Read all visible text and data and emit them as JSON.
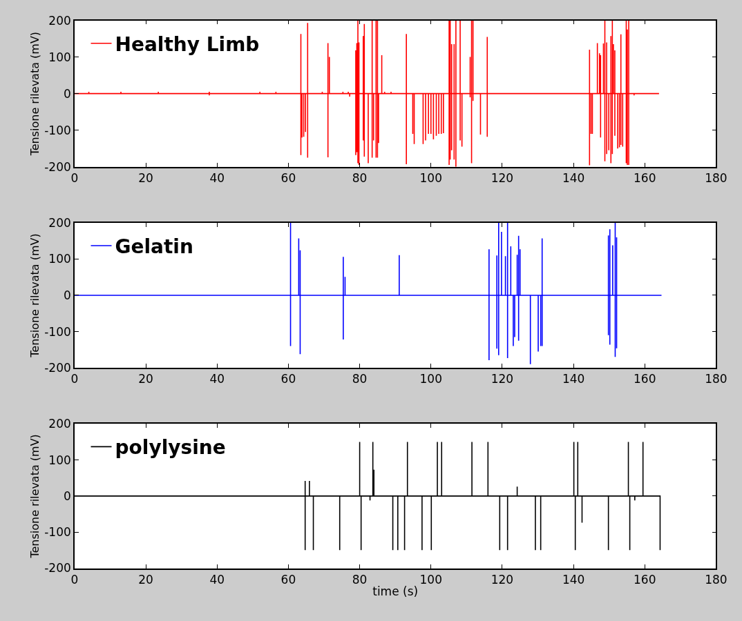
{
  "chart_data": [
    {
      "type": "line",
      "ylabel": "Tensione rilevata (mV)",
      "xlim": [
        0,
        180
      ],
      "xticks": [
        0,
        20,
        40,
        60,
        80,
        100,
        120,
        140,
        160,
        180
      ],
      "ylim": [
        -200,
        200
      ],
      "yticks": [
        -200,
        -100,
        0,
        100,
        200
      ],
      "legend": "top left",
      "series": [
        {
          "name": "Healthy Limb",
          "color": "#ff0000",
          "x": [
            0,
            4,
            4,
            4,
            13,
            13,
            13,
            23.5,
            23.5,
            23.5,
            37.8,
            37.8,
            37.8,
            37.8,
            52,
            52,
            52,
            56.5,
            56.5,
            56.5,
            63.5,
            63.5,
            63.5,
            63.5,
            63.8,
            63.8,
            63.8,
            64.3,
            64.3,
            64.3,
            64.8,
            64.8,
            64.8,
            65.4,
            65.4,
            65.4,
            65.4,
            69.5,
            69.5,
            69.5,
            71.1,
            71.1,
            71.1,
            71.1,
            71.5,
            71.5,
            71.5,
            75.3,
            75.3,
            75.3,
            76.8,
            76.8,
            76.8,
            77.2,
            77.2,
            77.2,
            78.9,
            78.9,
            78.9,
            78.9,
            79.2,
            79.2,
            79.2,
            79.2,
            79.5,
            79.5,
            79.5,
            79.5,
            79.8,
            79.8,
            79.8,
            79.8,
            81,
            81,
            81,
            81,
            81.3,
            81.3,
            81.3,
            81.3,
            82.4,
            82.4,
            82.4,
            83.5,
            83.5,
            83.5,
            83.5,
            83.9,
            83.9,
            83.9,
            84.6,
            84.6,
            84.6,
            84.6,
            85,
            85,
            85,
            85,
            85.3,
            85.3,
            85.3,
            86.2,
            86.2,
            86.2,
            87,
            87,
            87,
            88.8,
            88.8,
            88.8,
            93.1,
            93.1,
            93.1,
            93.1,
            94.9,
            94.9,
            94.9,
            95.3,
            95.3,
            95.3,
            97.8,
            97.8,
            97.8,
            98.5,
            98.5,
            98.5,
            99.3,
            99.3,
            99.3,
            100,
            100,
            100,
            100.7,
            100.7,
            100.7,
            101.5,
            101.5,
            101.5,
            102.2,
            102.2,
            102.2,
            102.9,
            102.9,
            102.9,
            103.5,
            103.5,
            103.5,
            105.1,
            105.1,
            105.1,
            105.1,
            105.4,
            105.4,
            105.4,
            105.4,
            105.8,
            105.8,
            105.8,
            105.8,
            106.5,
            106.5,
            106.5,
            106.5,
            107,
            107,
            107,
            107,
            108.2,
            108.2,
            108.2,
            108.2,
            108.7,
            108.7,
            108.7,
            111,
            111,
            111,
            111,
            111.4,
            111.4,
            111.4,
            111.4,
            111.8,
            111.8,
            111.8,
            111.8,
            113.9,
            113.9,
            113.9,
            115.8,
            115.8,
            115.8,
            115.8,
            144.5,
            144.5,
            144.5,
            144.5,
            144.9,
            144.9,
            144.9,
            145.3,
            145.3,
            145.3,
            146.7,
            146.7,
            146.7,
            147.3,
            147.3,
            147.3,
            147.6,
            147.6,
            147.6,
            147.6,
            148.4,
            148.4,
            148.4,
            148.8,
            148.8,
            148.8,
            148.8,
            149.3,
            149.3,
            149.3,
            149.3,
            149.9,
            149.9,
            149.9,
            150.5,
            150.5,
            150.5,
            150.5,
            150.9,
            150.9,
            150.9,
            150.9,
            151.2,
            151.2,
            151.2,
            151.6,
            151.6,
            151.6,
            151.6,
            152.4,
            152.4,
            152.4,
            152.9,
            152.9,
            152.9,
            153.3,
            153.3,
            153.3,
            153.3,
            153.8,
            153.8,
            153.8,
            154.8,
            154.8,
            154.8,
            154.8,
            155.1,
            155.1,
            155.1,
            155.1,
            155.5,
            155.5,
            155.5,
            155.5,
            157,
            157,
            157,
            164
          ],
          "values": [
            0,
            0,
            5,
            0,
            0,
            5,
            0,
            0,
            5,
            0,
            0,
            5,
            -5,
            0,
            0,
            5,
            0,
            0,
            5,
            0,
            0,
            163,
            -168,
            0,
            0,
            -120,
            0,
            0,
            -118,
            0,
            0,
            -105,
            0,
            0,
            193,
            -175,
            0,
            0,
            5,
            0,
            0,
            138,
            -174,
            0,
            0,
            100,
            0,
            0,
            5,
            0,
            0,
            5,
            0,
            0,
            -8,
            0,
            0,
            118,
            -168,
            0,
            0,
            138,
            -160,
            0,
            0,
            200,
            -190,
            0,
            0,
            140,
            -195,
            0,
            0,
            157,
            -128,
            0,
            0,
            190,
            -172,
            0,
            0,
            -190,
            0,
            0,
            200,
            -175,
            0,
            0,
            -128,
            0,
            0,
            200,
            -175,
            0,
            0,
            200,
            -175,
            0,
            0,
            -135,
            0,
            0,
            105,
            0,
            0,
            5,
            0,
            0,
            5,
            0,
            0,
            163,
            -193,
            0,
            0,
            -110,
            0,
            0,
            -138,
            0,
            0,
            -138,
            0,
            0,
            -128,
            0,
            0,
            -110,
            0,
            0,
            -110,
            0,
            0,
            -125,
            0,
            0,
            -115,
            0,
            0,
            -110,
            0,
            0,
            -110,
            0,
            0,
            -108,
            0,
            0,
            200,
            -195,
            0,
            0,
            200,
            -180,
            0,
            0,
            135,
            -155,
            0,
            0,
            135,
            -180,
            0,
            0,
            200,
            -200,
            0,
            0,
            200,
            -128,
            0,
            0,
            -145,
            0,
            0,
            100,
            -10,
            0,
            0,
            200,
            -190,
            0,
            0,
            200,
            -20,
            0,
            0,
            -112,
            0,
            0,
            155,
            -118,
            0,
            0,
            120,
            -196,
            0,
            0,
            -110,
            0,
            0,
            -110,
            0,
            0,
            138,
            0,
            0,
            110,
            0,
            0,
            105,
            -120,
            0,
            0,
            137,
            0,
            0,
            200,
            -185,
            0,
            0,
            140,
            -165,
            0,
            0,
            -155,
            0,
            0,
            157,
            -190,
            0,
            0,
            200,
            -165,
            0,
            0,
            135,
            0,
            0,
            118,
            -115,
            0,
            0,
            -150,
            0,
            0,
            -147,
            0,
            0,
            162,
            -140,
            0,
            0,
            -145,
            0,
            0,
            200,
            -190,
            0,
            0,
            175,
            -195,
            0,
            0,
            200,
            -195,
            0,
            0,
            -5,
            0,
            0
          ]
        }
      ]
    },
    {
      "type": "line",
      "ylabel": "Tensione rilevata (mV)",
      "xlim": [
        0,
        180
      ],
      "xticks": [
        0,
        20,
        40,
        60,
        80,
        100,
        120,
        140,
        160,
        180
      ],
      "ylim": [
        -200,
        200
      ],
      "yticks": [
        -200,
        -100,
        0,
        100,
        200
      ],
      "legend": "top left",
      "series": [
        {
          "name": "Gelatin",
          "color": "#0000ff",
          "x": [
            0,
            60.6,
            60.6,
            60.6,
            60.6,
            62.9,
            62.9,
            62.9,
            63.3,
            63.3,
            63.3,
            63.3,
            75.4,
            75.4,
            75.4,
            75.4,
            75.9,
            75.9,
            75.9,
            91.1,
            91.1,
            91.1,
            116.3,
            116.3,
            116.3,
            116.3,
            118.5,
            118.5,
            118.5,
            118.5,
            119,
            119,
            119,
            119,
            119.8,
            119.8,
            119.8,
            120.9,
            120.9,
            120.9,
            121.5,
            121.5,
            121.5,
            121.5,
            122.4,
            122.4,
            122.4,
            123.1,
            123.1,
            123.1,
            123.5,
            123.5,
            123.5,
            124.2,
            124.2,
            124.2,
            124.6,
            124.6,
            124.6,
            124.6,
            125,
            125,
            125,
            127.9,
            127.9,
            127.9,
            130.1,
            130.1,
            130.1,
            130.8,
            130.8,
            130.8,
            131.2,
            131.2,
            131.2,
            131.2,
            149.8,
            149.8,
            149.8,
            149.8,
            150.2,
            150.2,
            150.2,
            150.2,
            151,
            151,
            151,
            151.7,
            151.7,
            151.7,
            151.7,
            152.1,
            152.1,
            152.1,
            152.1,
            164.7
          ],
          "values": [
            0,
            0,
            200,
            -140,
            0,
            0,
            157,
            0,
            0,
            124,
            -162,
            0,
            0,
            106,
            -122,
            0,
            0,
            51,
            0,
            0,
            111,
            0,
            0,
            127,
            -179,
            0,
            0,
            110,
            -147,
            0,
            0,
            200,
            -165,
            0,
            0,
            175,
            0,
            0,
            108,
            0,
            0,
            200,
            -173,
            0,
            0,
            135,
            0,
            0,
            -140,
            0,
            0,
            -115,
            0,
            0,
            112,
            0,
            0,
            164,
            -125,
            0,
            0,
            127,
            0,
            0,
            -190,
            0,
            0,
            -155,
            0,
            0,
            -140,
            0,
            0,
            157,
            -140,
            0,
            0,
            165,
            -110,
            0,
            0,
            182,
            -136,
            0,
            0,
            138,
            0,
            0,
            200,
            -170,
            0,
            0,
            160,
            -146,
            0,
            0
          ]
        }
      ]
    },
    {
      "type": "line",
      "ylabel": "Tensione rilevata (mV)",
      "xlabel": "time (s)",
      "xlim": [
        0,
        180
      ],
      "xticks": [
        0,
        20,
        40,
        60,
        80,
        100,
        120,
        140,
        160,
        180
      ],
      "ylim": [
        -200,
        200
      ],
      "yticks": [
        -200,
        -100,
        0,
        100,
        200
      ],
      "legend": "top left",
      "series": [
        {
          "name": "polylysine",
          "color": "#000000",
          "x": [
            0,
            64.7,
            64.7,
            64.7,
            64.7,
            65.9,
            65.9,
            65.9,
            67,
            67,
            67,
            74.4,
            74.4,
            74.4,
            80,
            80,
            80,
            80.4,
            80.4,
            80.4,
            82.9,
            82.9,
            82.9,
            83.7,
            83.7,
            83.7,
            84,
            84,
            84,
            89.3,
            89.3,
            89.3,
            90.7,
            90.7,
            90.7,
            92.6,
            92.6,
            92.6,
            93.4,
            93.4,
            93.4,
            97.5,
            97.5,
            97.5,
            100.1,
            100.1,
            100.1,
            101.8,
            101.8,
            101.8,
            103,
            103,
            103,
            111.5,
            111.5,
            111.5,
            116,
            116,
            116,
            119.3,
            119.3,
            119.3,
            121.5,
            121.5,
            121.5,
            124.2,
            124.2,
            124.2,
            129.3,
            129.3,
            129.3,
            130.8,
            130.8,
            130.8,
            140.1,
            140.1,
            140.1,
            140.5,
            140.5,
            140.5,
            141.2,
            141.2,
            141.2,
            142.4,
            142.4,
            142.4,
            149.8,
            149.8,
            149.8,
            155.4,
            155.4,
            155.4,
            155.8,
            155.8,
            155.8,
            157.2,
            157.2,
            157.2,
            159.5,
            159.5,
            159.5,
            164.3,
            164.3
          ],
          "values": [
            0,
            0,
            42,
            -150,
            0,
            0,
            42,
            0,
            0,
            -150,
            0,
            0,
            -150,
            0,
            0,
            150,
            0,
            0,
            -150,
            0,
            0,
            -12,
            0,
            0,
            150,
            0,
            0,
            73,
            0,
            0,
            -150,
            0,
            0,
            -150,
            0,
            0,
            -150,
            0,
            0,
            150,
            0,
            0,
            -150,
            0,
            0,
            -150,
            0,
            0,
            150,
            0,
            0,
            150,
            0,
            0,
            150,
            0,
            0,
            150,
            0,
            0,
            -150,
            0,
            0,
            -150,
            0,
            0,
            26,
            0,
            0,
            -150,
            0,
            0,
            -150,
            0,
            0,
            150,
            0,
            0,
            -150,
            0,
            0,
            150,
            0,
            0,
            -74,
            0,
            0,
            -150,
            0,
            0,
            150,
            0,
            0,
            -150,
            0,
            0,
            -12,
            0,
            0,
            150,
            0,
            0,
            -150
          ]
        }
      ]
    }
  ]
}
